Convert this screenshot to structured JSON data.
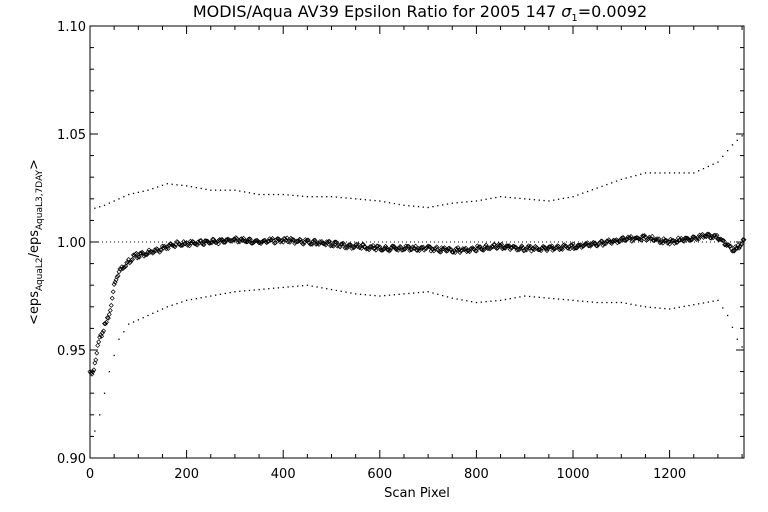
{
  "chart_data": {
    "type": "scatter",
    "title_main": "MODIS/Aqua AV39 Epsilon Ratio for 2005 147 ",
    "title_sigma_symbol": "σ",
    "title_sigma_sub": "1",
    "title_sigma_value": "=0.0092",
    "xlabel": "Scan Pixel",
    "ylabel_pre": "<eps",
    "ylabel_sub1": "AquaL2",
    "ylabel_mid": "/eps",
    "ylabel_sub2": "AquaL3,7DAY",
    "ylabel_post": ">",
    "xlim": [
      0,
      1354
    ],
    "ylim": [
      0.9,
      1.1
    ],
    "x_ticks": [
      0,
      200,
      400,
      600,
      800,
      1000,
      1200
    ],
    "x_tick_labels": [
      "0",
      "200",
      "400",
      "600",
      "800",
      "1000",
      "1200"
    ],
    "y_ticks": [
      0.9,
      0.95,
      1.0,
      1.05,
      1.1
    ],
    "y_tick_labels": [
      "0.90",
      "0.95",
      "1.00",
      "1.05",
      "1.10"
    ],
    "reference_line": 1.0,
    "grid": false,
    "mean_ratio": [
      [
        0,
        0.94
      ],
      [
        5,
        0.938
      ],
      [
        10,
        0.944
      ],
      [
        15,
        0.95
      ],
      [
        20,
        0.955
      ],
      [
        25,
        0.958
      ],
      [
        30,
        0.961
      ],
      [
        35,
        0.963
      ],
      [
        40,
        0.967
      ],
      [
        45,
        0.972
      ],
      [
        50,
        0.98
      ],
      [
        55,
        0.984
      ],
      [
        60,
        0.986
      ],
      [
        70,
        0.989
      ],
      [
        80,
        0.991
      ],
      [
        90,
        0.993
      ],
      [
        100,
        0.994
      ],
      [
        120,
        0.995
      ],
      [
        140,
        0.996
      ],
      [
        160,
        0.998
      ],
      [
        180,
        0.999
      ],
      [
        200,
        0.999
      ],
      [
        250,
        1.0
      ],
      [
        300,
        1.001
      ],
      [
        350,
        1.0
      ],
      [
        400,
        1.001
      ],
      [
        450,
        1.0
      ],
      [
        500,
        0.999
      ],
      [
        550,
        0.998
      ],
      [
        600,
        0.997
      ],
      [
        650,
        0.997
      ],
      [
        700,
        0.997
      ],
      [
        750,
        0.996
      ],
      [
        800,
        0.997
      ],
      [
        850,
        0.998
      ],
      [
        900,
        0.997
      ],
      [
        950,
        0.997
      ],
      [
        1000,
        0.998
      ],
      [
        1050,
        0.999
      ],
      [
        1100,
        1.001
      ],
      [
        1150,
        1.002
      ],
      [
        1200,
        1.0
      ],
      [
        1250,
        1.002
      ],
      [
        1280,
        1.003
      ],
      [
        1300,
        1.002
      ],
      [
        1320,
        0.999
      ],
      [
        1330,
        0.996
      ],
      [
        1340,
        0.997
      ],
      [
        1354,
        1.001
      ]
    ],
    "upper_band": [
      [
        0,
        1.015
      ],
      [
        30,
        1.017
      ],
      [
        50,
        1.019
      ],
      [
        80,
        1.022
      ],
      [
        120,
        1.024
      ],
      [
        160,
        1.027
      ],
      [
        200,
        1.026
      ],
      [
        250,
        1.024
      ],
      [
        300,
        1.024
      ],
      [
        350,
        1.022
      ],
      [
        400,
        1.022
      ],
      [
        450,
        1.021
      ],
      [
        500,
        1.021
      ],
      [
        550,
        1.02
      ],
      [
        600,
        1.019
      ],
      [
        650,
        1.017
      ],
      [
        700,
        1.016
      ],
      [
        750,
        1.018
      ],
      [
        800,
        1.019
      ],
      [
        850,
        1.021
      ],
      [
        900,
        1.02
      ],
      [
        950,
        1.019
      ],
      [
        1000,
        1.021
      ],
      [
        1050,
        1.025
      ],
      [
        1100,
        1.029
      ],
      [
        1150,
        1.032
      ],
      [
        1200,
        1.032
      ],
      [
        1250,
        1.032
      ],
      [
        1300,
        1.037
      ],
      [
        1330,
        1.045
      ],
      [
        1354,
        1.05
      ]
    ],
    "lower_band": [
      [
        0,
        0.905
      ],
      [
        20,
        0.92
      ],
      [
        40,
        0.94
      ],
      [
        60,
        0.955
      ],
      [
        80,
        0.962
      ],
      [
        120,
        0.966
      ],
      [
        160,
        0.97
      ],
      [
        200,
        0.973
      ],
      [
        250,
        0.975
      ],
      [
        300,
        0.977
      ],
      [
        350,
        0.978
      ],
      [
        400,
        0.979
      ],
      [
        450,
        0.98
      ],
      [
        500,
        0.978
      ],
      [
        550,
        0.976
      ],
      [
        600,
        0.975
      ],
      [
        650,
        0.976
      ],
      [
        700,
        0.977
      ],
      [
        750,
        0.974
      ],
      [
        800,
        0.972
      ],
      [
        850,
        0.973
      ],
      [
        900,
        0.975
      ],
      [
        950,
        0.974
      ],
      [
        1000,
        0.973
      ],
      [
        1050,
        0.972
      ],
      [
        1100,
        0.972
      ],
      [
        1150,
        0.97
      ],
      [
        1200,
        0.969
      ],
      [
        1250,
        0.971
      ],
      [
        1300,
        0.973
      ],
      [
        1320,
        0.966
      ],
      [
        1340,
        0.955
      ],
      [
        1354,
        0.95
      ]
    ]
  }
}
